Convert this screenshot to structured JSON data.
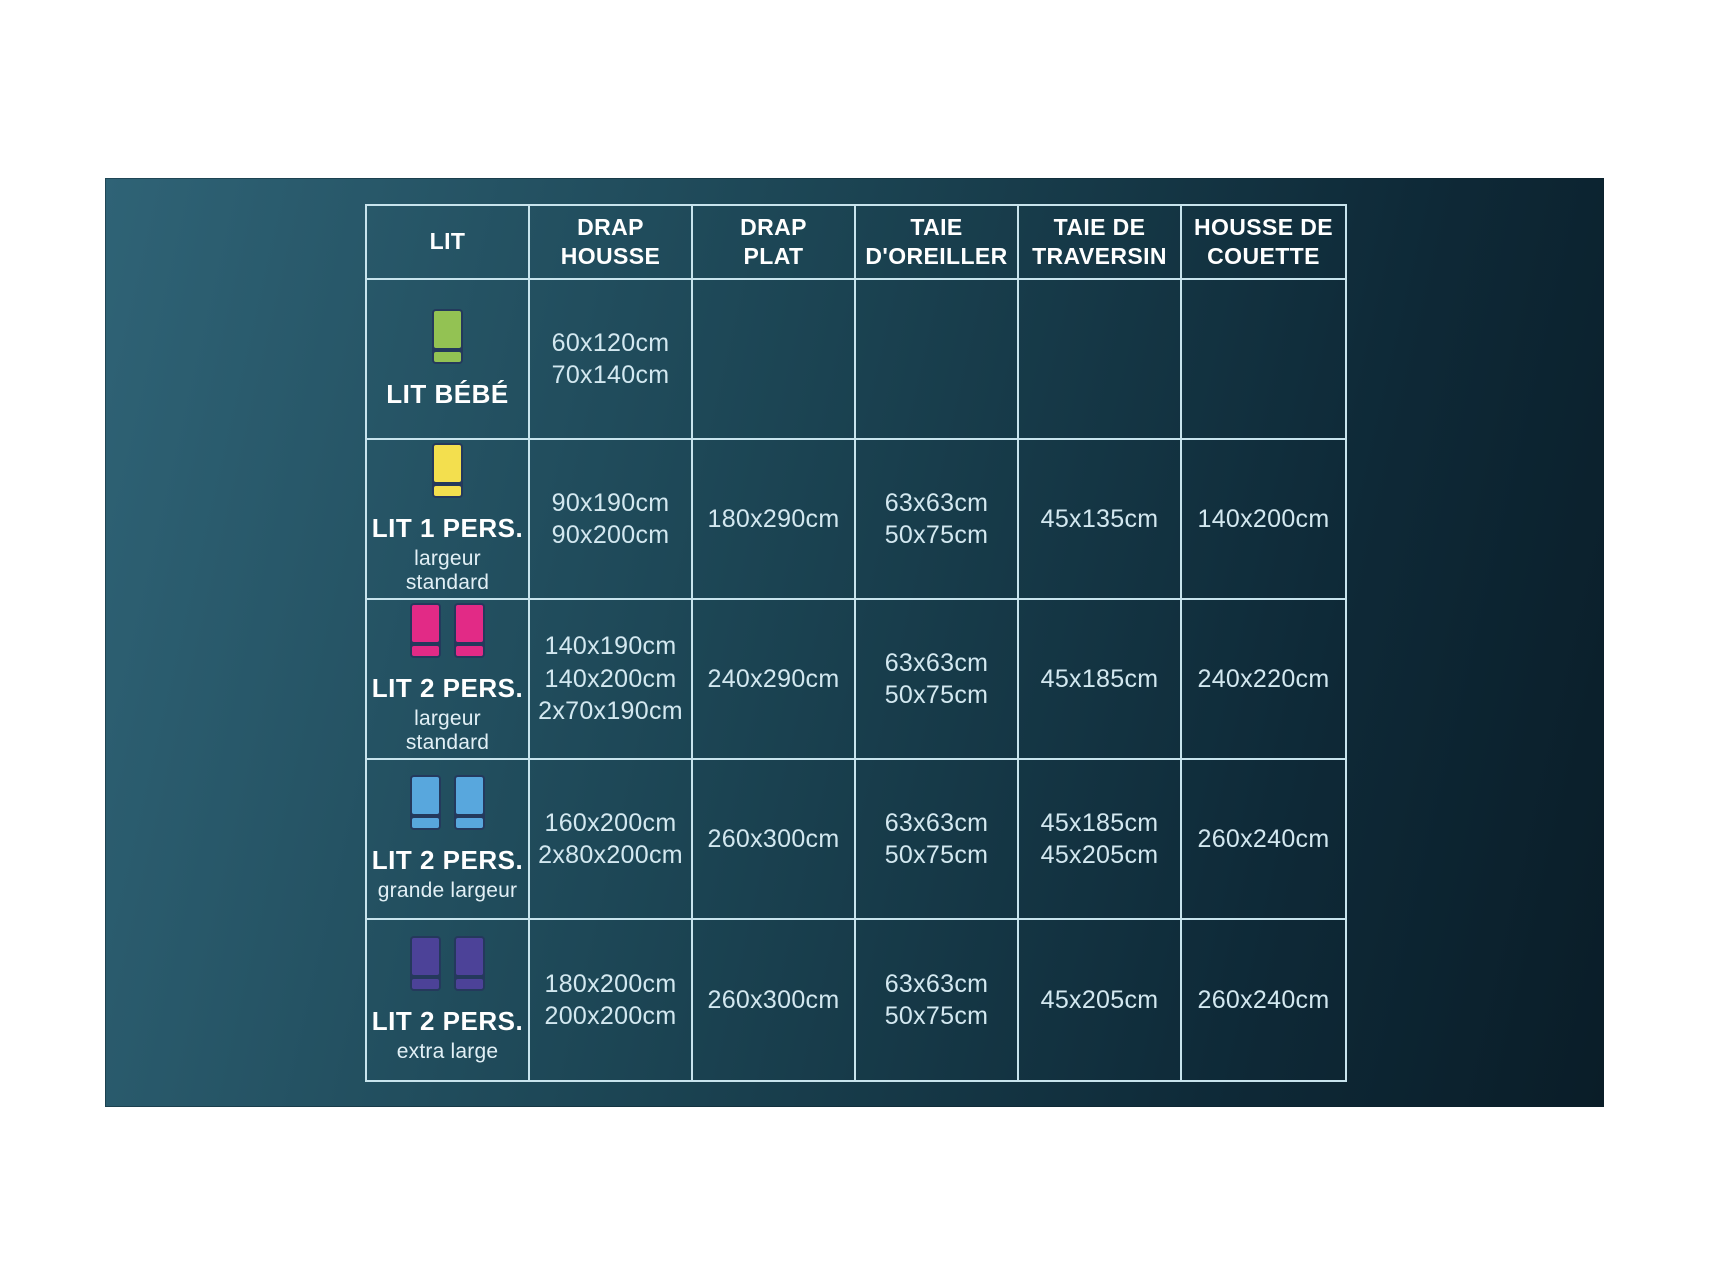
{
  "colors": {
    "panel_light": "#2f6376",
    "panel_mid": "#1c4touch554",
    "panel_mid_fix": "#1c4554",
    "panel_dark": "#0e2937",
    "panel_darkest": "#0a1d28",
    "grid_line": "#c8e4ed",
    "header_text": "#ffffff",
    "value_text": "#d3e8f0",
    "bed_outline": "#24395c"
  },
  "chart_data": {
    "type": "table",
    "columns": [
      "LIT",
      "DRAP\nHOUSSE",
      "DRAP\nPLAT",
      "TAIE\nD'OREILLER",
      "TAIE DE\nTRAVERSIN",
      "HOUSSE DE\nCOUETTE"
    ],
    "rows": [
      {
        "lit": "LIT BÉBÉ",
        "subtitle": "",
        "bed_count": 1,
        "icon": "bed-icon",
        "icon_color": "#93c253",
        "drap_housse": "60x120cm\n70x140cm",
        "drap_plat": "",
        "taie_oreiller": "",
        "taie_traversin": "",
        "housse_couette": ""
      },
      {
        "lit": "LIT 1 PERS.",
        "subtitle": "largeur standard",
        "bed_count": 1,
        "icon": "bed-icon",
        "icon_color": "#f3df4e",
        "drap_housse": "90x190cm\n90x200cm",
        "drap_plat": "180x290cm",
        "taie_oreiller": "63x63cm\n50x75cm",
        "taie_traversin": "45x135cm",
        "housse_couette": "140x200cm"
      },
      {
        "lit": "LIT 2 PERS.",
        "subtitle": "largeur standard",
        "bed_count": 2,
        "icon": "bed-icon",
        "icon_color": "#e22a86",
        "drap_housse": "140x190cm\n140x200cm\n2x70x190cm",
        "drap_plat": "240x290cm",
        "taie_oreiller": "63x63cm\n50x75cm",
        "taie_traversin": "45x185cm",
        "housse_couette": "240x220cm"
      },
      {
        "lit": "LIT 2 PERS.",
        "subtitle": "grande largeur",
        "bed_count": 2,
        "icon": "bed-icon",
        "icon_color": "#58a7dd",
        "drap_housse": "160x200cm\n2x80x200cm",
        "drap_plat": "260x300cm",
        "taie_oreiller": "63x63cm\n50x75cm",
        "taie_traversin": "45x185cm\n45x205cm",
        "housse_couette": "260x240cm"
      },
      {
        "lit": "LIT 2 PERS.",
        "subtitle": "extra large",
        "bed_count": 2,
        "icon": "bed-icon",
        "icon_color": "#4c4298",
        "drap_housse": "180x200cm\n200x200cm",
        "drap_plat": "260x300cm",
        "taie_oreiller": "63x63cm\n50x75cm",
        "taie_traversin": "45x205cm",
        "housse_couette": "260x240cm"
      }
    ]
  }
}
